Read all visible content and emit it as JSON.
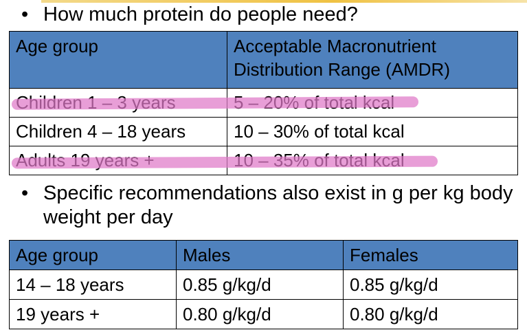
{
  "bullets": {
    "symbol": "•",
    "question": "How much protein do people need?",
    "note": "Specific recommendations also exist in g per kg body weight per day"
  },
  "amdr_table": {
    "header": {
      "age_group": "Age group",
      "amdr_line1": "Acceptable Macronutrient",
      "amdr_line2": "Distribution Range (AMDR)"
    },
    "rows": [
      {
        "age_group": "Children 1 – 3 years",
        "range": "5 – 20% of total kcal"
      },
      {
        "age_group": "Children 4 – 18 years",
        "range": "10 – 30% of total kcal"
      },
      {
        "age_group": "Adults 19 years +",
        "range": "10 – 35% of total kcal"
      }
    ]
  },
  "perkg_table": {
    "header": {
      "age_group": "Age group",
      "males": "Males",
      "females": "Females"
    },
    "rows": [
      {
        "age_group": "14 – 18 years",
        "males": "0.85 g/kg/d",
        "females": "0.85 g/kg/d"
      },
      {
        "age_group": "19 years +",
        "males": "0.80 g/kg/d",
        "females": "0.80 g/kg/d"
      }
    ]
  },
  "colors": {
    "header_fill": "#4f81bd",
    "highlighter": "#df78c8"
  }
}
